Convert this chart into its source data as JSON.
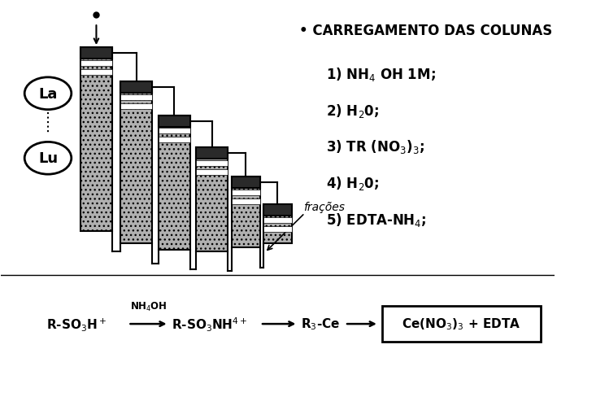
{
  "bg_color": "#ffffff",
  "title_text": "• CARREGAMENTO DAS COLUNAS",
  "title_fontsize": 12,
  "steps": [
    "1) NH$_4$ OH 1M;",
    "2) H$_2$0;",
    "3) TR (NO$_3$)$_3$;",
    "4) H$_2$0;",
    "5) EDTA-NH$_4$;"
  ],
  "steps_fontsize": 12,
  "eq_fontsize": 11
}
